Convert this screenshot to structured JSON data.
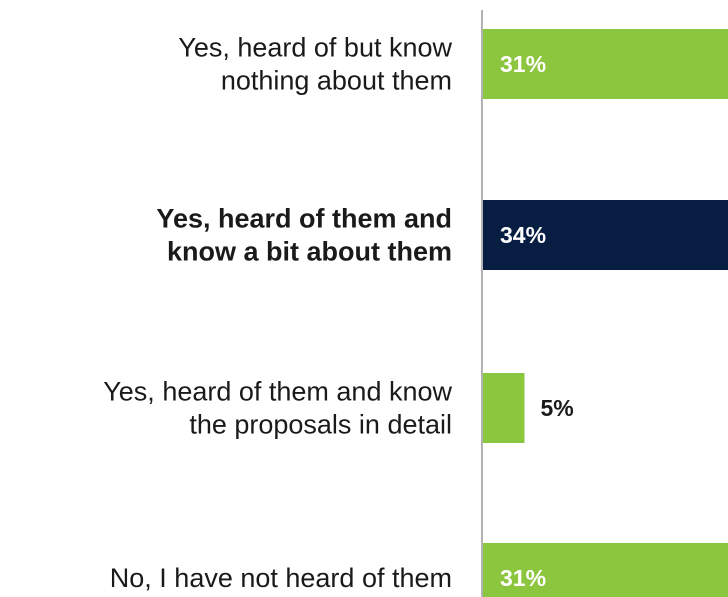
{
  "chart_data": {
    "type": "bar",
    "orientation": "horizontal",
    "title": "",
    "xlabel": "",
    "ylabel": "",
    "grid": false,
    "categories": [
      "Yes, heard of but know nothing about them",
      "Yes, heard of them and know a bit about them",
      "Yes, heard of them and know the proposals in detail",
      "No, I have not heard of them"
    ],
    "label_lines": [
      [
        "Yes, heard of but know",
        "nothing about them"
      ],
      [
        "Yes, heard of them and",
        "know a bit about them"
      ],
      [
        "Yes, heard of them and know",
        "the proposals in detail"
      ],
      [
        "No, I have not heard of them"
      ]
    ],
    "values": [
      31,
      34,
      5,
      31
    ],
    "value_labels": [
      "31%",
      "34%",
      "5%",
      "31%"
    ],
    "highlighted_index": 1,
    "colors": {
      "bar": "#8cc63f",
      "highlight": "#071d41",
      "label_on_bar": "#ffffff",
      "label_outside": "#1a1a1a",
      "axis": "#b3b3b3"
    }
  }
}
